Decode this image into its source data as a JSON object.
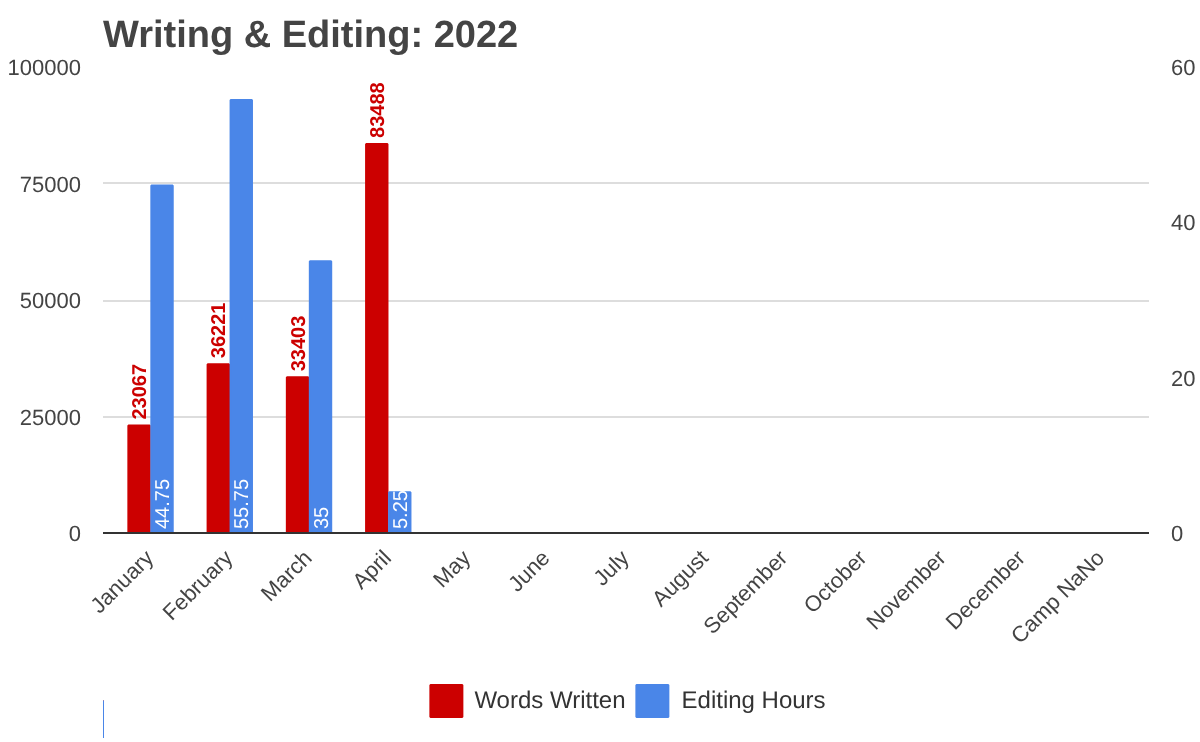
{
  "chart_data": {
    "type": "bar",
    "title": "Writing & Editing: 2022",
    "categories": [
      "January",
      "February",
      "March",
      "April",
      "May",
      "June",
      "July",
      "August",
      "September",
      "October",
      "November",
      "December",
      "Camp NaNo"
    ],
    "series": [
      {
        "name": "Words Written",
        "color": "#cc0000",
        "values": [
          23067,
          36221,
          33403,
          83488,
          null,
          null,
          null,
          null,
          null,
          null,
          null,
          null,
          null
        ]
      },
      {
        "name": "Editing Hours",
        "color": "#4a86e8",
        "axis": "y2",
        "values": [
          44.75,
          55.75,
          35,
          5.25,
          null,
          null,
          null,
          null,
          null,
          null,
          null,
          null,
          null
        ]
      }
    ],
    "ylim": [
      0,
      100000
    ],
    "yticks": [
      0,
      25000,
      50000,
      75000,
      100000
    ],
    "y2lim": [
      0,
      60
    ],
    "y2ticks": [
      0,
      20,
      40,
      60
    ],
    "grid": "y",
    "legend": "bottom",
    "data_labels": true
  }
}
